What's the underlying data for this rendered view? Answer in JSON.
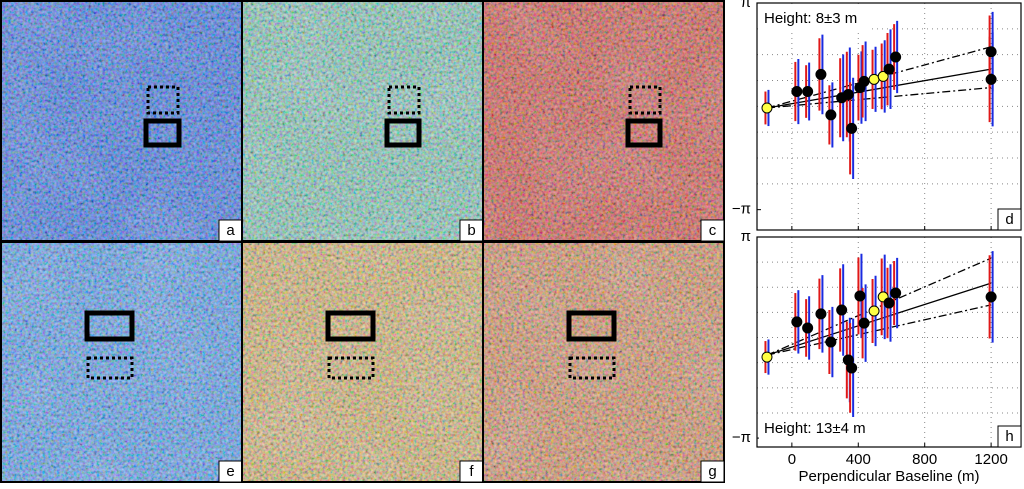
{
  "images": [
    {
      "label": "a",
      "color": "#2a72dd"
    },
    {
      "label": "b",
      "color": "#86dca0"
    },
    {
      "label": "c",
      "color": "#ec4a12"
    },
    {
      "label": "e",
      "color": "#4fa6e6"
    },
    {
      "label": "f",
      "color": "#eec244"
    },
    {
      "label": "g",
      "color": "#ee9434"
    }
  ],
  "chart_data": [
    {
      "type": "scatter",
      "label": "d",
      "annotation": "Height: 8±3 m",
      "x": [
        -150,
        30,
        95,
        175,
        235,
        300,
        340,
        360,
        410,
        435,
        495,
        550,
        585,
        625,
        1200,
        1200
      ],
      "values": [
        -0.05,
        0.45,
        0.45,
        0.97,
        -0.26,
        0.26,
        0.36,
        -0.67,
        0.57,
        0.76,
        0.82,
        0.91,
        1.13,
        1.5,
        0.82,
        1.66
      ],
      "errors": [
        0.5,
        0.9,
        0.8,
        1.1,
        0.9,
        1.2,
        1.3,
        1.4,
        1.0,
        1.1,
        0.9,
        1.0,
        1.1,
        1.0,
        1.3,
        1.1
      ],
      "point_colors": [
        "#ffff44",
        "#000",
        "#000",
        "#000",
        "#000",
        "#000",
        "#000",
        "#000",
        "#000",
        "#000",
        "#ffff44",
        "#ffff44",
        "#000",
        "#000",
        "#000",
        "#000"
      ],
      "fit_lines": [
        {
          "style": "solid",
          "x": [
            -150,
            1200
          ],
          "y": [
            -0.05,
            1.13
          ]
        },
        {
          "style": "dashdot",
          "x": [
            -150,
            1200
          ],
          "y": [
            -0.05,
            1.81
          ]
        },
        {
          "style": "dashdot",
          "x": [
            -150,
            1200
          ],
          "y": [
            -0.05,
            0.57
          ]
        }
      ],
      "xlim": [
        -210,
        1380
      ],
      "ylim": [
        -3.76,
        3.1416
      ],
      "xticks": [
        0,
        400,
        800,
        1200
      ],
      "yticks": [
        {
          "value": 3.1416,
          "label": "π"
        },
        {
          "value": -3.1416,
          "label": "−π"
        }
      ],
      "ygrid": [
        -2.3562,
        -1.5708,
        -0.7854,
        0,
        0.7854,
        1.5708,
        2.3562
      ],
      "grid": true
    },
    {
      "type": "scatter",
      "label": "h",
      "annotation": "Height: 13±4 m",
      "xlabel": "Perpendicular Baseline (m)",
      "x": [
        -150,
        30,
        95,
        175,
        235,
        300,
        340,
        360,
        410,
        435,
        495,
        550,
        585,
        625,
        1200
      ],
      "values": [
        -0.61,
        0.49,
        0.3,
        0.74,
        -0.14,
        0.86,
        -0.7,
        -0.95,
        1.3,
        0.45,
        0.83,
        1.27,
        1.08,
        1.39,
        1.27
      ],
      "errors": [
        0.5,
        0.9,
        0.9,
        1.1,
        1.0,
        1.3,
        1.2,
        1.4,
        1.2,
        1.1,
        1.0,
        1.2,
        1.1,
        1.0,
        1.3
      ],
      "point_colors": [
        "#ffff44",
        "#000",
        "#000",
        "#000",
        "#000",
        "#000",
        "#000",
        "#000",
        "#000",
        "#000",
        "#ffff44",
        "#ffff44",
        "#000",
        "#000",
        "#000"
      ],
      "fit_lines": [
        {
          "style": "solid",
          "x": [
            -150,
            1200
          ],
          "y": [
            -0.55,
            1.7
          ]
        },
        {
          "style": "dashdot",
          "x": [
            -150,
            1200
          ],
          "y": [
            -0.55,
            2.48
          ]
        },
        {
          "style": "dashdot",
          "x": [
            -150,
            1200
          ],
          "y": [
            -0.55,
            1.02
          ]
        }
      ],
      "xlim": [
        -210,
        1380
      ],
      "ylim": [
        -3.42,
        3.1416
      ],
      "xticks": [
        0,
        400,
        800,
        1200
      ],
      "yticks": [
        {
          "value": 3.1416,
          "label": "π"
        },
        {
          "value": -3.1416,
          "label": "−π"
        }
      ],
      "ygrid": [
        -2.3562,
        -1.5708,
        -0.7854,
        0,
        0.7854,
        1.5708,
        2.3562
      ],
      "grid": true
    }
  ]
}
